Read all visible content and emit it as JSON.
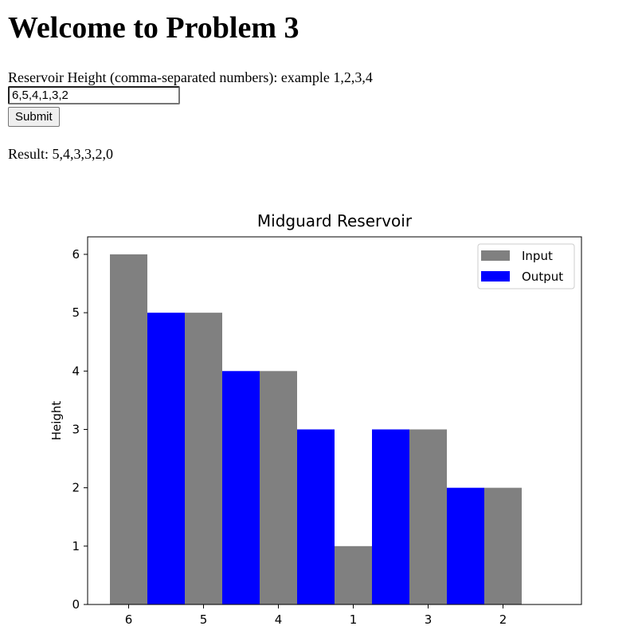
{
  "page": {
    "title": "Welcome to Problem 3"
  },
  "form": {
    "label": "Reservoir Height (comma-separated numbers): example 1,2,3,4",
    "input_value": "6,5,4,1,3,2",
    "submit_label": "Submit"
  },
  "result": {
    "text": "Result: 5,4,3,3,2,0"
  },
  "chart_data": {
    "type": "bar",
    "title": "Midguard Reservoir",
    "xlabel": "",
    "ylabel": "Height",
    "categories": [
      "6",
      "5",
      "4",
      "1",
      "3",
      "2"
    ],
    "series": [
      {
        "name": "Input",
        "values": [
          6,
          5,
          4,
          1,
          3,
          2
        ],
        "color": "#808080"
      },
      {
        "name": "Output",
        "values": [
          5,
          4,
          3,
          3,
          2,
          0
        ],
        "color": "#0000ff"
      }
    ],
    "yticks": [
      0,
      1,
      2,
      3,
      4,
      5,
      6
    ],
    "ylim": [
      0,
      6.3
    ],
    "legend_position": "top-right",
    "grid": false
  }
}
